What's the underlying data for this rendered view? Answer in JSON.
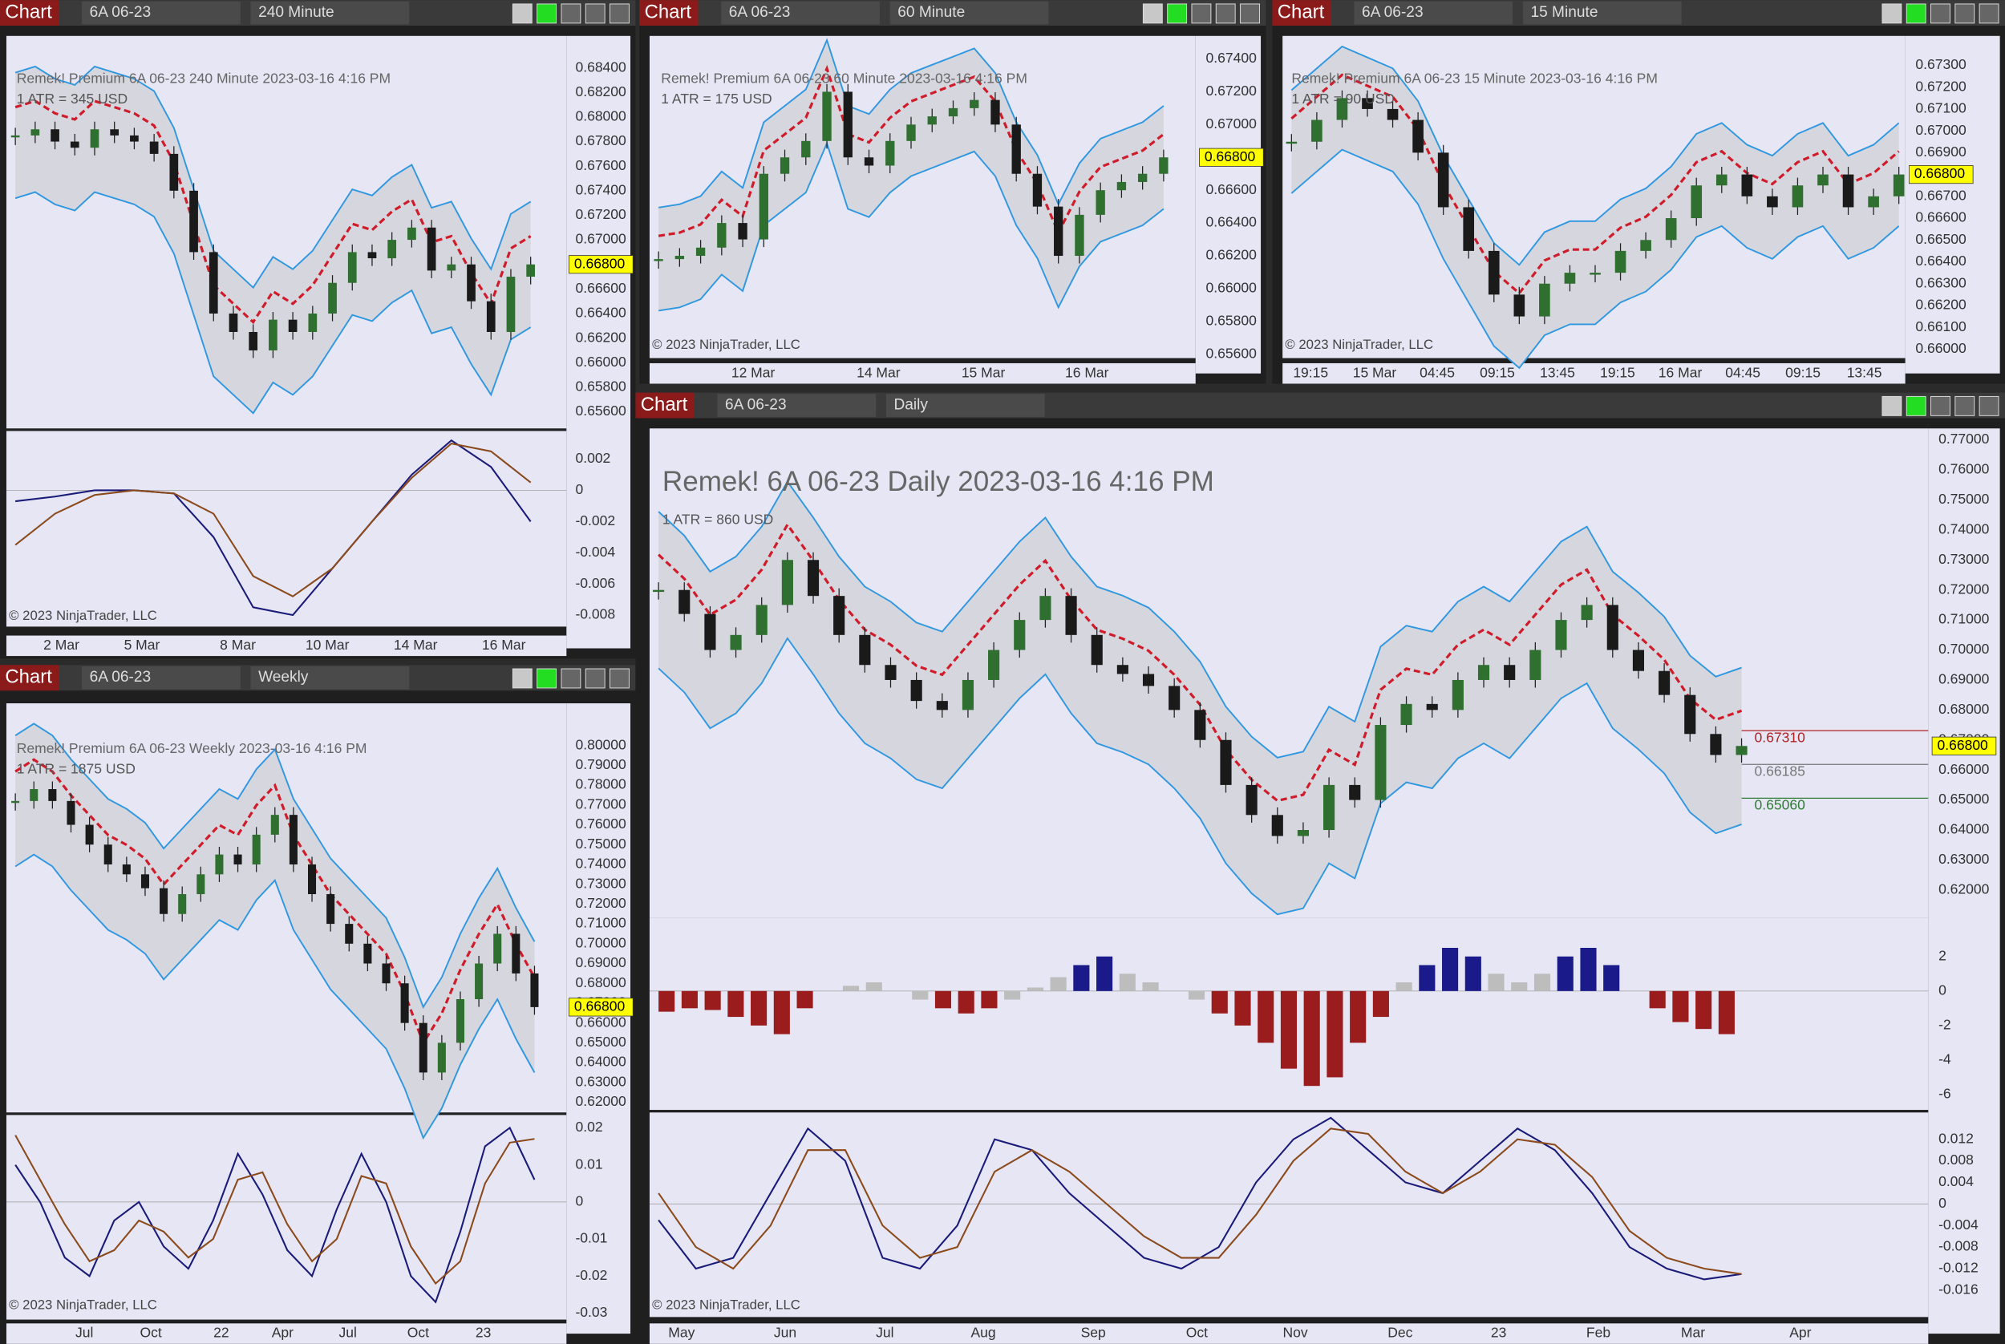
{
  "windows": [
    {
      "tab": "Chart",
      "instrument": "6A 06-23",
      "period": "240 Minute",
      "header": "Remek!  Premium  6A 06-23  240 Minute  2023-03-16 4:16 PM",
      "atr": "1 ATR = 345 USD",
      "copyright": "© 2023 NinjaTrader, LLC",
      "price_ticks": [
        "0.68400",
        "0.68200",
        "0.68000",
        "0.67800",
        "0.67600",
        "0.67400",
        "0.67200",
        "0.67000",
        "0.66800",
        "0.66600",
        "0.66400",
        "0.66200",
        "0.66000",
        "0.65800",
        "0.65600"
      ],
      "price_label": "0.66800",
      "osc_ticks": [
        "0.002",
        "0",
        "-0.002",
        "-0.004",
        "-0.006",
        "-0.008"
      ],
      "dates": [
        "2 Mar",
        "5 Mar",
        "8 Mar",
        "10 Mar",
        "14 Mar",
        "16 Mar"
      ],
      "closes": [
        0.6785,
        0.679,
        0.678,
        0.6775,
        0.679,
        0.6785,
        0.678,
        0.677,
        0.674,
        0.669,
        0.664,
        0.6625,
        0.661,
        0.6635,
        0.6625,
        0.664,
        0.6665,
        0.669,
        0.6685,
        0.67,
        0.671,
        0.6675,
        0.668,
        0.665,
        0.6625,
        0.667,
        0.668
      ],
      "osc_lines": [
        {
          "color": "#1a1a78",
          "values": [
            -0.0007,
            -0.0004,
            0,
            0,
            -0.0002,
            -0.003,
            -0.0075,
            -0.008,
            -0.005,
            -0.002,
            0.001,
            0.0032,
            0.0015,
            -0.002
          ]
        },
        {
          "color": "#8b4a1c",
          "values": [
            -0.0035,
            -0.0015,
            -0.0003,
            0,
            -0.0002,
            -0.0015,
            -0.0055,
            -0.0068,
            -0.005,
            -0.002,
            0.0008,
            0.003,
            0.0025,
            0.0005
          ]
        }
      ]
    },
    {
      "tab": "Chart",
      "instrument": "6A 06-23",
      "period": "60 Minute",
      "header": "Remek!  Premium  6A 06-23  60 Minute  2023-03-16 4:16 PM",
      "atr": "1 ATR = 175 USD",
      "copyright": "© 2023 NinjaTrader, LLC",
      "price_ticks": [
        "0.67400",
        "0.67200",
        "0.67000",
        "0.66800",
        "0.66600",
        "0.66400",
        "0.66200",
        "0.66000",
        "0.65800",
        "0.65600"
      ],
      "price_label": "0.66800",
      "dates": [
        "12 Mar",
        "14 Mar",
        "15 Mar",
        "16 Mar"
      ],
      "closes": [
        0.6618,
        0.662,
        0.6625,
        0.664,
        0.663,
        0.667,
        0.668,
        0.669,
        0.672,
        0.668,
        0.6675,
        0.669,
        0.67,
        0.6705,
        0.671,
        0.6715,
        0.67,
        0.667,
        0.665,
        0.662,
        0.6645,
        0.666,
        0.6665,
        0.667,
        0.668
      ]
    },
    {
      "tab": "Chart",
      "instrument": "6A 06-23",
      "period": "15 Minute",
      "header": "Remek!  Premium  6A 06-23  15 Minute  2023-03-16 4:16 PM",
      "atr": "1 ATR = 90 USD",
      "copyright": "© 2023 NinjaTrader, LLC",
      "price_ticks": [
        "0.67300",
        "0.67200",
        "0.67100",
        "0.67000",
        "0.66900",
        "0.66800",
        "0.66700",
        "0.66600",
        "0.66500",
        "0.66400",
        "0.66300",
        "0.66200",
        "0.66100",
        "0.66000"
      ],
      "price_label": "0.66800",
      "dates": [
        "19:15",
        "15 Mar",
        "04:45",
        "09:15",
        "13:45",
        "19:15",
        "16 Mar",
        "04:45",
        "09:15",
        "13:45"
      ],
      "closes": [
        0.6695,
        0.6705,
        0.6715,
        0.671,
        0.6705,
        0.669,
        0.6665,
        0.6645,
        0.6625,
        0.6615,
        0.663,
        0.6635,
        0.6635,
        0.6645,
        0.665,
        0.666,
        0.6675,
        0.668,
        0.667,
        0.6665,
        0.6675,
        0.668,
        0.6665,
        0.667,
        0.668
      ]
    },
    {
      "tab": "Chart",
      "instrument": "6A 06-23",
      "period": "Weekly",
      "header": "Remek!  Premium  6A 06-23  Weekly  2023-03-16 4:16 PM",
      "atr": "1 ATR = 1875 USD",
      "copyright": "© 2023 NinjaTrader, LLC",
      "price_ticks": [
        "0.80000",
        "0.79000",
        "0.78000",
        "0.77000",
        "0.76000",
        "0.75000",
        "0.74000",
        "0.73000",
        "0.72000",
        "0.71000",
        "0.70000",
        "0.69000",
        "0.68000",
        "0.67000",
        "0.66000",
        "0.65000",
        "0.64000",
        "0.63000",
        "0.62000"
      ],
      "price_label": "0.66800",
      "osc_ticks": [
        "0.02",
        "0.01",
        "0",
        "-0.01",
        "-0.02",
        "-0.03"
      ],
      "dates": [
        "Jul",
        "Oct",
        "22",
        "Apr",
        "Jul",
        "Oct",
        "23"
      ],
      "closes": [
        0.772,
        0.778,
        0.772,
        0.76,
        0.75,
        0.74,
        0.735,
        0.728,
        0.715,
        0.725,
        0.735,
        0.745,
        0.74,
        0.755,
        0.765,
        0.74,
        0.725,
        0.71,
        0.7,
        0.69,
        0.68,
        0.66,
        0.635,
        0.65,
        0.672,
        0.69,
        0.705,
        0.685,
        0.668
      ],
      "osc_lines": [
        {
          "color": "#1a1a78",
          "values": [
            0.01,
            0,
            -0.015,
            -0.02,
            -0.005,
            0,
            -0.012,
            -0.018,
            -0.005,
            0.013,
            0.002,
            -0.013,
            -0.02,
            -0.002,
            0.013,
            0,
            -0.02,
            -0.027,
            -0.008,
            0.015,
            0.02,
            0.006
          ]
        },
        {
          "color": "#8b4a1c",
          "values": [
            0.018,
            0.006,
            -0.006,
            -0.016,
            -0.013,
            -0.005,
            -0.008,
            -0.015,
            -0.01,
            0.006,
            0.008,
            -0.006,
            -0.016,
            -0.01,
            0.007,
            0.005,
            -0.012,
            -0.022,
            -0.016,
            0.005,
            0.016,
            0.017
          ]
        }
      ]
    },
    {
      "tab": "Chart",
      "instrument": "6A 06-23",
      "period": "Daily",
      "header": "Remek!  6A 06-23  Daily  2023-03-16 4:16 PM",
      "atr": "1 ATR = 860 USD",
      "copyright": "© 2023 NinjaTrader, LLC",
      "price_ticks": [
        "0.77000",
        "0.76000",
        "0.75000",
        "0.74000",
        "0.73000",
        "0.72000",
        "0.71000",
        "0.70000",
        "0.69000",
        "0.68000",
        "0.67000",
        "0.66000",
        "0.65000",
        "0.64000",
        "0.63000",
        "0.62000"
      ],
      "price_label": "0.66800",
      "annotations": [
        {
          "text": "0.67310",
          "color": "#b22222"
        },
        {
          "text": "0.66185",
          "color": "#777777"
        },
        {
          "text": "0.65060",
          "color": "#2e7d32"
        }
      ],
      "hist_ticks": [
        "2",
        "0",
        "-2",
        "-4",
        "-6"
      ],
      "osc_ticks": [
        "0.012",
        "0.008",
        "0.004",
        "0",
        "-0.004",
        "-0.008",
        "-0.012",
        "-0.016"
      ],
      "dates": [
        "May",
        "Jun",
        "Jul",
        "Aug",
        "Sep",
        "Oct",
        "Nov",
        "Dec",
        "23",
        "Feb",
        "Mar",
        "Apr"
      ],
      "closes": [
        0.72,
        0.712,
        0.7,
        0.705,
        0.715,
        0.73,
        0.718,
        0.705,
        0.695,
        0.69,
        0.683,
        0.68,
        0.69,
        0.7,
        0.71,
        0.718,
        0.705,
        0.695,
        0.692,
        0.688,
        0.68,
        0.67,
        0.655,
        0.645,
        0.638,
        0.64,
        0.655,
        0.65,
        0.675,
        0.682,
        0.68,
        0.69,
        0.695,
        0.69,
        0.7,
        0.71,
        0.715,
        0.7,
        0.693,
        0.685,
        0.672,
        0.665,
        0.668
      ],
      "histogram": [
        -1.2,
        -1,
        -1.1,
        -1.5,
        -2,
        -2.5,
        -1,
        0,
        0.3,
        0.5,
        0,
        -0.5,
        -1,
        -1.3,
        -1,
        -0.5,
        0.2,
        0.8,
        1.5,
        2,
        1,
        0.5,
        0,
        -0.5,
        -1.3,
        -2,
        -3,
        -4.5,
        -5.5,
        -5,
        -3,
        -1.5,
        0.5,
        1.5,
        2.5,
        2,
        1,
        0.5,
        1,
        2,
        2.5,
        1.5,
        0,
        -1,
        -1.8,
        -2.2,
        -2.5
      ],
      "osc_lines": [
        {
          "color": "#1a1a78",
          "values": [
            -0.003,
            -0.012,
            -0.01,
            0.002,
            0.014,
            0.008,
            -0.01,
            -0.012,
            -0.004,
            0.012,
            0.01,
            0.002,
            -0.004,
            -0.01,
            -0.012,
            -0.008,
            0.004,
            0.012,
            0.016,
            0.01,
            0.004,
            0.002,
            0.008,
            0.014,
            0.01,
            0.002,
            -0.008,
            -0.012,
            -0.014,
            -0.013
          ]
        },
        {
          "color": "#8b4a1c",
          "values": [
            0.002,
            -0.008,
            -0.012,
            -0.004,
            0.01,
            0.01,
            -0.004,
            -0.01,
            -0.008,
            0.006,
            0.01,
            0.006,
            0,
            -0.006,
            -0.01,
            -0.01,
            -0.002,
            0.008,
            0.014,
            0.013,
            0.006,
            0.002,
            0.006,
            0.012,
            0.011,
            0.005,
            -0.005,
            -0.01,
            -0.012,
            -0.013
          ]
        }
      ]
    }
  ]
}
